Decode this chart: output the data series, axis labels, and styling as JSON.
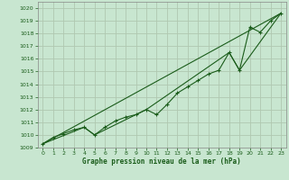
{
  "title": "Graphe pression niveau de la mer (hPa)",
  "background_color": "#c8e6d0",
  "grid_color": "#b0c8b0",
  "line_color": "#1a5c1a",
  "xlim": [
    -0.5,
    23.5
  ],
  "ylim": [
    1009.0,
    1020.5
  ],
  "xticks": [
    0,
    1,
    2,
    3,
    4,
    5,
    6,
    7,
    8,
    9,
    10,
    11,
    12,
    13,
    14,
    15,
    16,
    17,
    18,
    19,
    20,
    21,
    22,
    23
  ],
  "yticks": [
    1009,
    1010,
    1011,
    1012,
    1013,
    1014,
    1015,
    1016,
    1017,
    1018,
    1019,
    1020
  ],
  "series_main": {
    "x": [
      0,
      1,
      2,
      3,
      4,
      5,
      6,
      7,
      8,
      9,
      10,
      11,
      12,
      13,
      14,
      15,
      16,
      17,
      18,
      19,
      20,
      21,
      22,
      23
    ],
    "y": [
      1009.3,
      1009.8,
      1010.1,
      1010.4,
      1010.6,
      1010.0,
      1010.6,
      1011.1,
      1011.4,
      1011.6,
      1012.0,
      1011.6,
      1012.4,
      1013.3,
      1013.8,
      1014.3,
      1014.8,
      1015.1,
      1016.5,
      1015.1,
      1018.5,
      1018.1,
      1019.0,
      1019.6
    ]
  },
  "series_linear": {
    "x": [
      0,
      23
    ],
    "y": [
      1009.3,
      1019.6
    ]
  },
  "series_segmented": {
    "x": [
      0,
      4,
      5,
      9,
      10,
      18,
      19,
      23
    ],
    "y": [
      1009.3,
      1010.6,
      1010.0,
      1011.6,
      1012.0,
      1016.5,
      1015.1,
      1019.6
    ]
  }
}
